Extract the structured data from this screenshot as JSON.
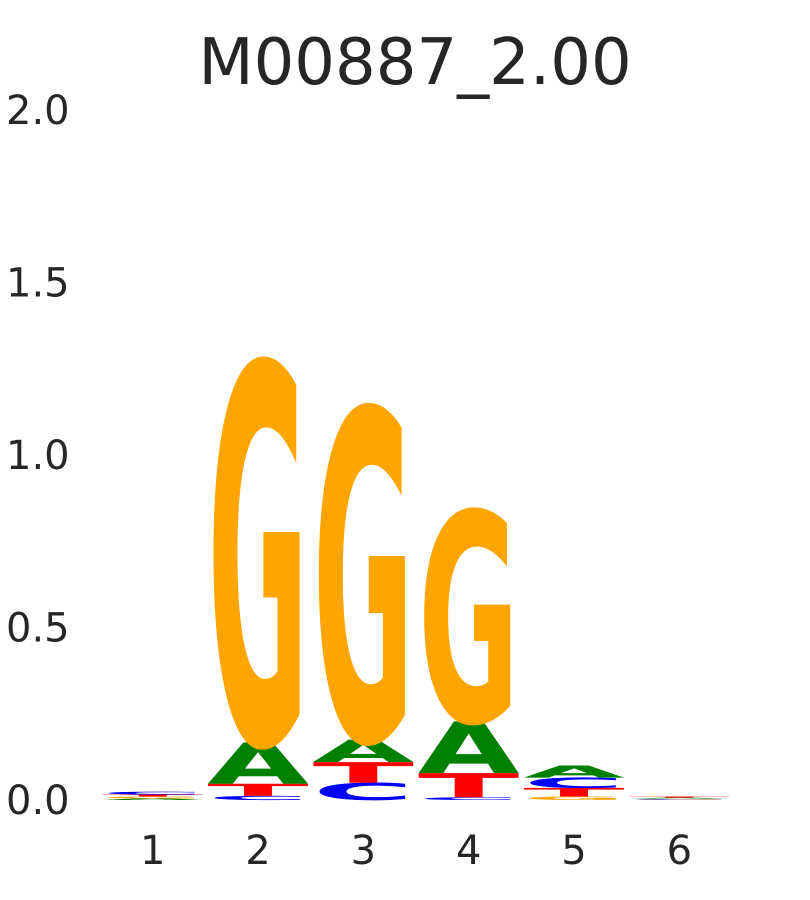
{
  "chart_data": {
    "type": "logo",
    "title": "M00887_2.00",
    "categories": [
      "1",
      "2",
      "3",
      "4",
      "5",
      "6"
    ],
    "series": [
      {
        "name": "A",
        "color": "#008000",
        "values": [
          0.005,
          0.12,
          0.065,
          0.15,
          0.035,
          0.003
        ]
      },
      {
        "name": "C",
        "color": "#0000ff",
        "values": [
          0.008,
          0.012,
          0.05,
          0.008,
          0.03,
          0.002
        ]
      },
      {
        "name": "G",
        "color": "#ffa500",
        "values": [
          0.005,
          1.1,
          0.96,
          0.61,
          0.01,
          0.002
        ]
      },
      {
        "name": "T",
        "color": "#ff0000",
        "values": [
          0.006,
          0.035,
          0.06,
          0.07,
          0.025,
          0.003
        ]
      }
    ],
    "ylim": [
      0,
      2
    ],
    "yticks": [
      {
        "value": 0,
        "label": "0.0"
      },
      0.5,
      {
        "value": 1,
        "label": "1.0"
      },
      1.5,
      {
        "value": 2,
        "label": "2.0"
      }
    ]
  }
}
